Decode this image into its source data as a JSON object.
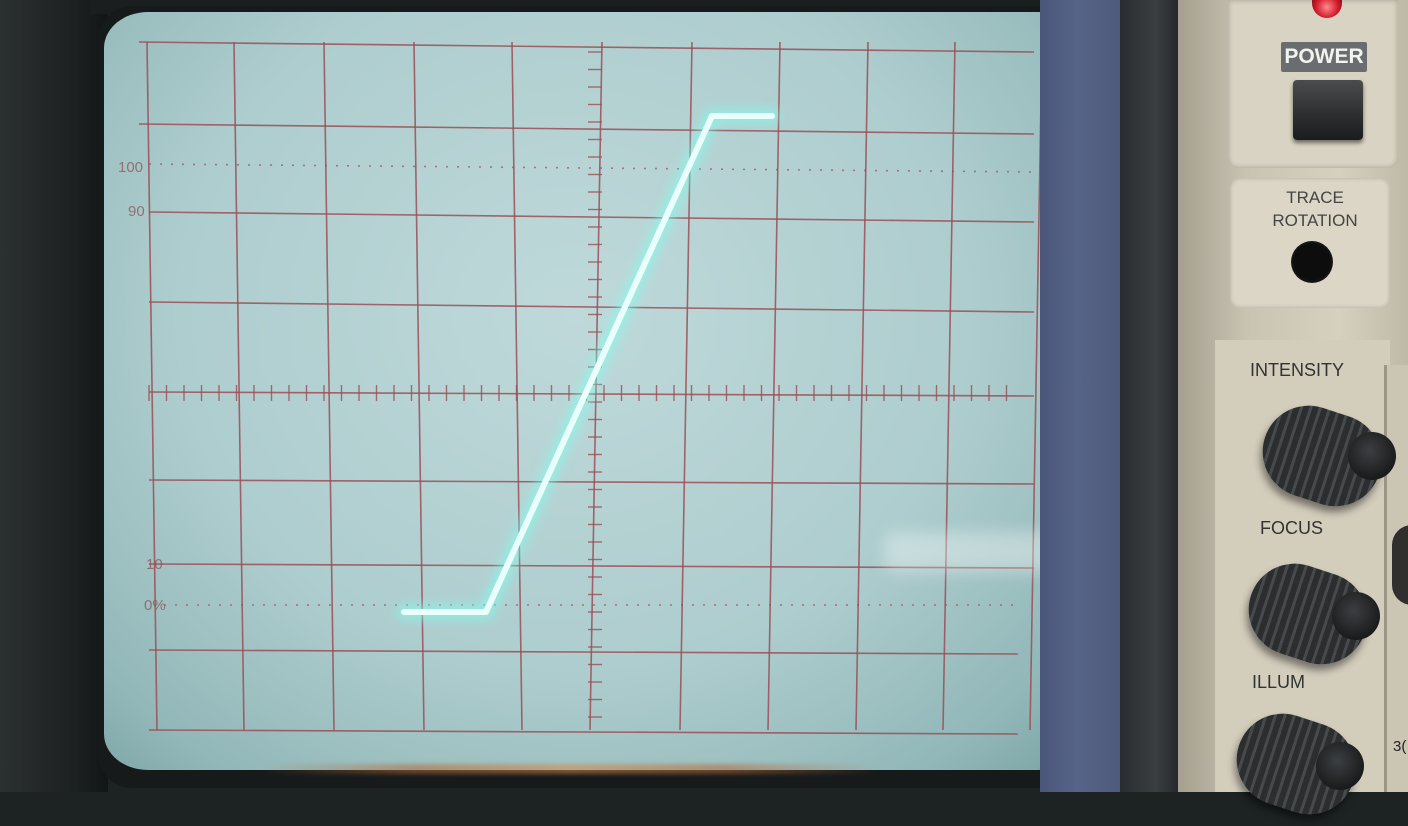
{
  "graticule": {
    "label_100": "100",
    "label_90": "90",
    "label_10": "10",
    "label_0": "0%"
  },
  "trace": {
    "color": "#7ffff0",
    "description_points_div": [
      [
        -2.2,
        -2.55
      ],
      [
        -1.2,
        -2.55
      ],
      [
        1.2,
        3.2
      ],
      [
        2.0,
        3.2
      ]
    ]
  },
  "panel": {
    "power_label": "POWER",
    "trace_rotation_label": "TRACE\nROTATION",
    "intensity_label": "INTENSITY",
    "focus_label": "FOCUS",
    "illum_label": "ILLUM",
    "partial_digits": "3("
  },
  "colors": {
    "screen": "#b4d2d3",
    "graticule": "#9a4f55",
    "panel": "#d3cdbc",
    "side_strip": "#566488"
  }
}
